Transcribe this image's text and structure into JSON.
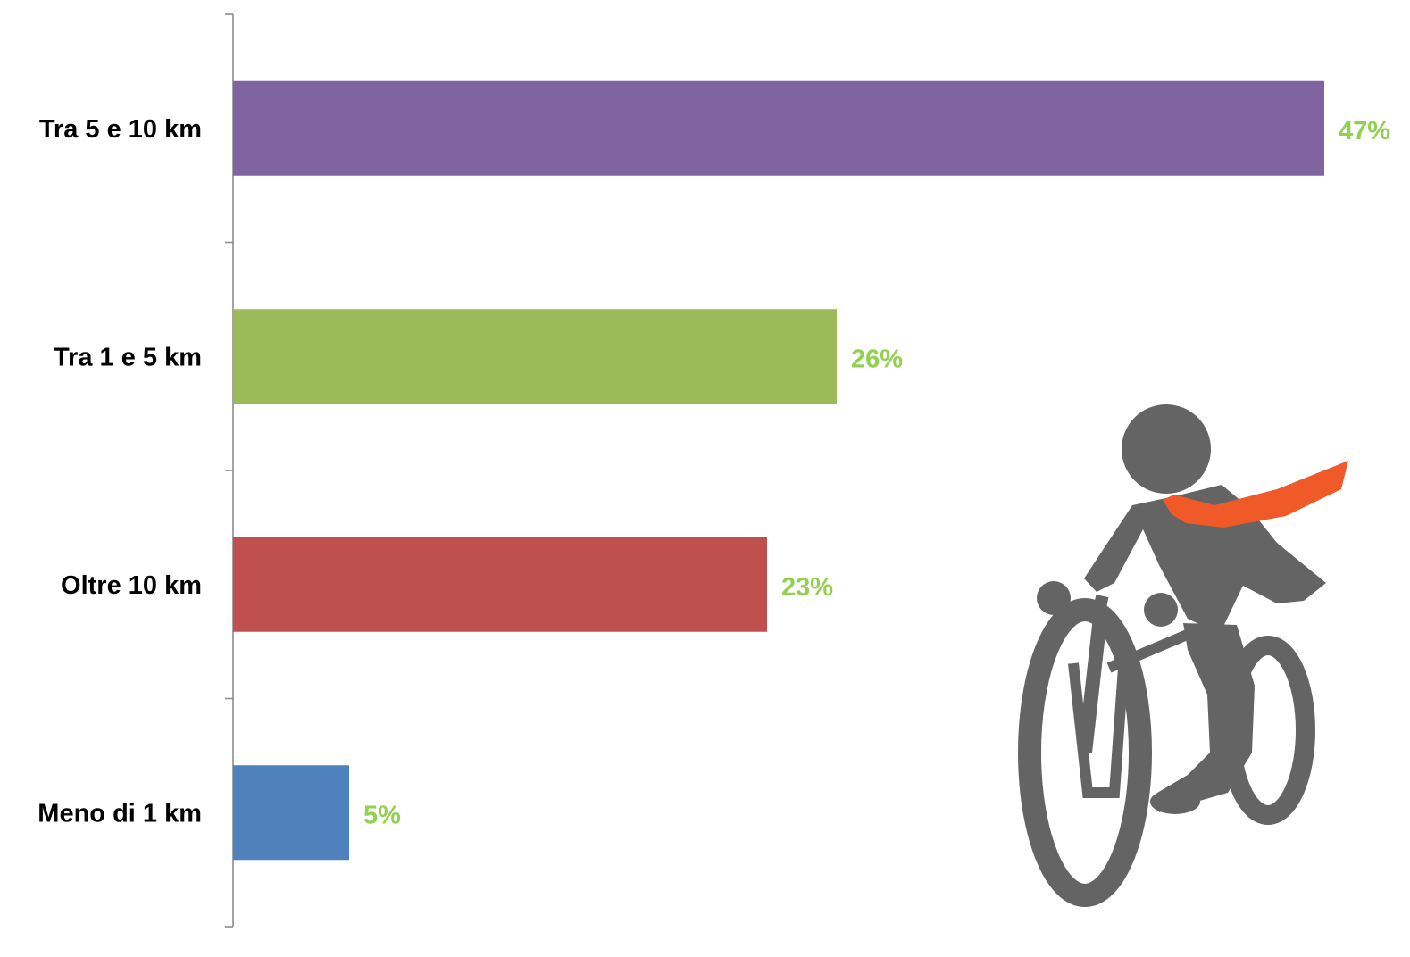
{
  "chart_data": {
    "type": "bar",
    "orientation": "horizontal",
    "categories": [
      "Tra 5 e 10 km",
      "Tra 1 e 5 km",
      "Oltre 10 km",
      "Meno di 1 km"
    ],
    "values": [
      47,
      26,
      23,
      5
    ],
    "value_labels": [
      "47%",
      "26%",
      "23%",
      "5%"
    ],
    "bar_colors": [
      "#8064A2",
      "#9BBB59",
      "#C0504D",
      "#4F81BD"
    ],
    "value_label_color": "#92D050",
    "xlim": [
      0,
      47
    ],
    "grid": false,
    "legend": "none"
  },
  "illustration": {
    "icon": "cyclist-businessman-icon",
    "colors": {
      "figure": "#646464",
      "tie": "#F05A28"
    }
  }
}
